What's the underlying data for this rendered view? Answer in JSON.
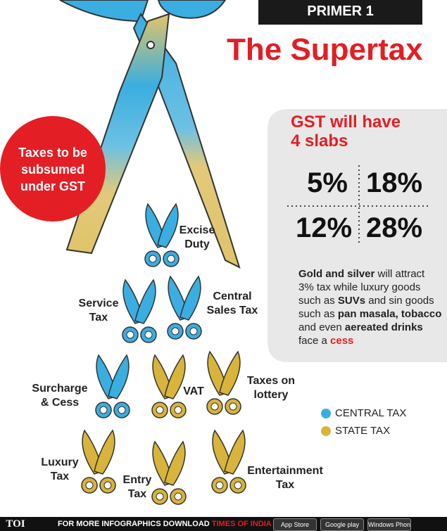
{
  "header": {
    "kicker": "PRIMER 1",
    "title": "The Supertax"
  },
  "badge": "Taxes to be subsumed under GST",
  "slabs": {
    "title": "GST will have 4 slabs",
    "rates": [
      "5%",
      "18%",
      "12%",
      "28%"
    ],
    "note": [
      {
        "text": "Gold and silver",
        "bold": true
      },
      {
        "text": " will attract 3% tax while luxury goods such as ",
        "bold": false
      },
      {
        "text": "SUVs",
        "bold": true
      },
      {
        "text": " and sin goods such as ",
        "bold": false
      },
      {
        "text": "pan masala, tobacco",
        "bold": true
      },
      {
        "text": " and even ",
        "bold": false
      },
      {
        "text": "aereated drinks",
        "bold": true
      },
      {
        "text": " face a ",
        "bold": false
      },
      {
        "text": "cess",
        "bold": true,
        "color": "#e02020"
      }
    ]
  },
  "legend": [
    {
      "label": "CENTRAL TAX",
      "color": "#3aaee0"
    },
    {
      "label": "STATE TAX",
      "color": "#d8b43a"
    }
  ],
  "taxes": [
    {
      "label": "Excise Duty",
      "kind": 0
    },
    {
      "label": "Service Tax",
      "kind": 0
    },
    {
      "label": "Central Sales Tax",
      "kind": 0
    },
    {
      "label": "Surcharge & Cess",
      "kind": 0
    },
    {
      "label": "VAT",
      "kind": 1
    },
    {
      "label": "Taxes on lottery",
      "kind": 1
    },
    {
      "label": "Luxury Tax",
      "kind": 1
    },
    {
      "label": "Entry Tax",
      "kind": 1
    },
    {
      "label": "Entertainment Tax",
      "kind": 1
    }
  ],
  "footer": {
    "brand": "TOI",
    "text": "FOR MORE INFOGRAPHICS DOWNLOAD",
    "app": "TIMES OF INDIA APP",
    "stores": [
      "App Store",
      "Google play",
      "Windows Phone"
    ]
  }
}
